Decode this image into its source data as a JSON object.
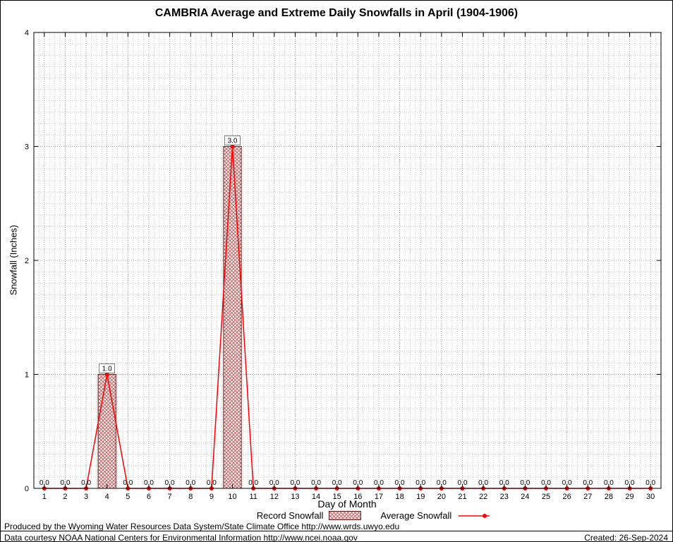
{
  "chart_data": {
    "type": "bar+line",
    "title": "CAMBRIA Average and Extreme Daily Snowfalls in April (1904-1906)",
    "xlabel": "Day of Month",
    "ylabel": "Snowfall (Inches)",
    "ylim": [
      0,
      4
    ],
    "y_ticks": [
      0,
      1,
      2,
      3,
      4
    ],
    "categories": [
      1,
      2,
      3,
      4,
      5,
      6,
      7,
      8,
      9,
      10,
      11,
      12,
      13,
      14,
      15,
      16,
      17,
      18,
      19,
      20,
      21,
      22,
      23,
      24,
      25,
      26,
      27,
      28,
      29,
      30
    ],
    "series": [
      {
        "name": "Record Snowfall",
        "type": "bar",
        "values": [
          0,
          0,
          0,
          1,
          0,
          0,
          0,
          0,
          0,
          3,
          0,
          0,
          0,
          0,
          0,
          0,
          0,
          0,
          0,
          0,
          0,
          0,
          0,
          0,
          0,
          0,
          0,
          0,
          0,
          0
        ]
      },
      {
        "name": "Average Snowfall",
        "type": "line",
        "values": [
          0,
          0,
          0,
          1,
          0,
          0,
          0,
          0,
          0,
          3,
          0,
          0,
          0,
          0,
          0,
          0,
          0,
          0,
          0,
          0,
          0,
          0,
          0,
          0,
          0,
          0,
          0,
          0,
          0,
          0
        ]
      }
    ],
    "point_labels": [
      "0.0",
      "0.0",
      "0.0",
      "1.0",
      "0.0",
      "0.0",
      "0.0",
      "0.0",
      "0.0",
      "3.0",
      "0.0",
      "0.0",
      "0.0",
      "0.0",
      "0.0",
      "0.0",
      "0.0",
      "0.0",
      "0.0",
      "0.0",
      "0.0",
      "0.0",
      "0.0",
      "0.0",
      "0.0",
      "0.0",
      "0.0",
      "0.0",
      "0.0",
      "0.0"
    ],
    "grid": true,
    "legend_position": "bottom"
  },
  "colors": {
    "line": "#ff0000",
    "bar_edge": "#6b2020",
    "bar_hatch": "#b25959",
    "bar_bg": "#f7e8e8",
    "grid_minor": "#c8c8c8",
    "grid_major": "#999999",
    "axis": "#000000"
  },
  "footer": {
    "line1": "Produced by the Wyoming Water Resources Data System/State Climate Office http://www.wrds.uwyo.edu",
    "line2": "Data courtesy NOAA National Centers for Environmental Information http://www.ncei.noaa.gov",
    "created": "Created: 26-Sep-2024"
  }
}
